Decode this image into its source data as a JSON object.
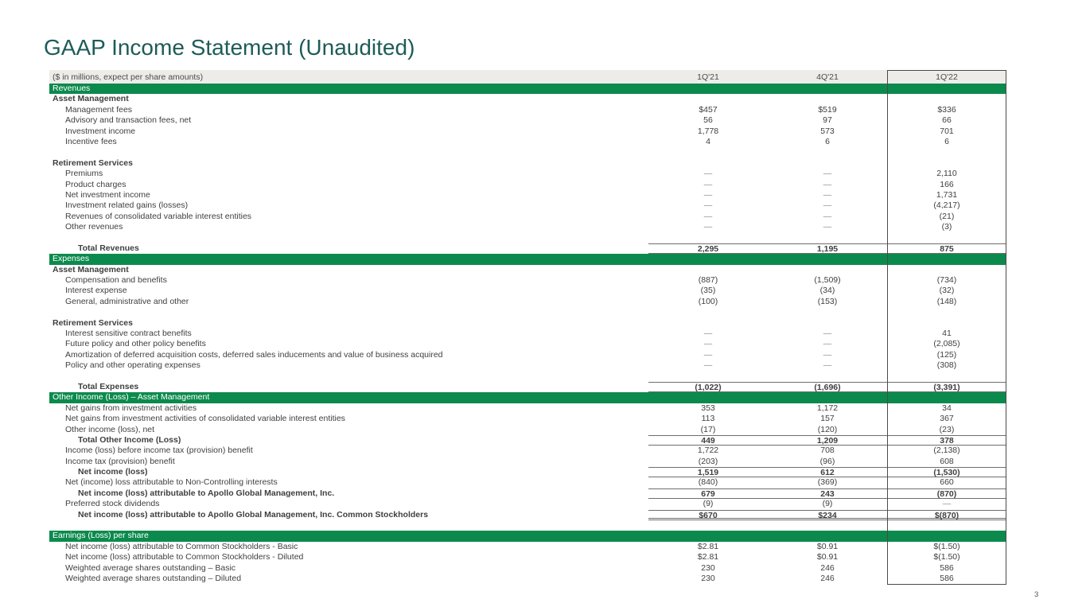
{
  "page": {
    "title": "GAAP Income Statement (Unaudited)",
    "page_number": "3"
  },
  "colors": {
    "brand_green": "#0c8a4d",
    "title_teal": "#1d5c58",
    "header_gray": "#edece9"
  },
  "table": {
    "header": {
      "label": "($ in millions, expect per share amounts)",
      "columns": [
        "1Q'21",
        "4Q'21",
        "1Q'22"
      ]
    },
    "highlighted_column": "1Q'22",
    "rows": [
      {
        "type": "band",
        "label": "Revenues"
      },
      {
        "type": "section",
        "label": "Asset Management"
      },
      {
        "type": "item",
        "label": "Management fees",
        "values": [
          "$457",
          "$519",
          "$336"
        ]
      },
      {
        "type": "item",
        "label": "Advisory and transaction fees, net",
        "values": [
          "56",
          "97",
          "66"
        ]
      },
      {
        "type": "item",
        "label": "Investment income",
        "values": [
          "1,778",
          "573",
          "701"
        ]
      },
      {
        "type": "item",
        "label": "Incentive fees",
        "values": [
          "4",
          "6",
          "6"
        ]
      },
      {
        "type": "blank",
        "label": ""
      },
      {
        "type": "section",
        "label": "Retirement Services"
      },
      {
        "type": "item",
        "label": "Premiums",
        "values": [
          "—",
          "—",
          "2,110"
        ]
      },
      {
        "type": "item",
        "label": "Product charges",
        "values": [
          "—",
          "—",
          "166"
        ]
      },
      {
        "type": "item",
        "label": "Net investment income",
        "values": [
          "—",
          "—",
          "1,731"
        ]
      },
      {
        "type": "item",
        "label": "Investment related gains (losses)",
        "values": [
          "—",
          "—",
          "(4,217)"
        ]
      },
      {
        "type": "item",
        "label": "Revenues of consolidated variable interest entities",
        "values": [
          "—",
          "—",
          "(21)"
        ]
      },
      {
        "type": "item",
        "label": "Other revenues",
        "values": [
          "—",
          "—",
          "(3)"
        ]
      },
      {
        "type": "blank",
        "label": ""
      },
      {
        "type": "total",
        "label": "Total Revenues",
        "values": [
          "2,295",
          "1,195",
          "875"
        ],
        "rule": "tb"
      },
      {
        "type": "band",
        "label": "Expenses"
      },
      {
        "type": "section",
        "label": "Asset Management"
      },
      {
        "type": "item",
        "label": "Compensation and benefits",
        "values": [
          "(887)",
          "(1,509)",
          "(734)"
        ]
      },
      {
        "type": "item",
        "label": "Interest expense",
        "values": [
          "(35)",
          "(34)",
          "(32)"
        ]
      },
      {
        "type": "item",
        "label": "General, administrative and other",
        "values": [
          "(100)",
          "(153)",
          "(148)"
        ]
      },
      {
        "type": "blank",
        "label": ""
      },
      {
        "type": "section",
        "label": "Retirement Services"
      },
      {
        "type": "item",
        "label": "Interest sensitive contract benefits",
        "values": [
          "—",
          "—",
          "41"
        ]
      },
      {
        "type": "item",
        "label": "Future policy and other policy benefits",
        "values": [
          "—",
          "—",
          "(2,085)"
        ]
      },
      {
        "type": "item",
        "label": "Amortization of deferred acquisition costs, deferred sales inducements and value of business acquired",
        "values": [
          "—",
          "—",
          "(125)"
        ]
      },
      {
        "type": "item",
        "label": "Policy and other operating expenses",
        "values": [
          "—",
          "—",
          "(308)"
        ]
      },
      {
        "type": "blank",
        "label": ""
      },
      {
        "type": "total",
        "label": "Total Expenses",
        "values": [
          "(1,022)",
          "(1,696)",
          "(3,391)"
        ],
        "rule": "tb"
      },
      {
        "type": "band",
        "label": "Other Income (Loss) – Asset Management"
      },
      {
        "type": "item",
        "label": "Net gains from investment activities",
        "values": [
          "353",
          "1,172",
          "34"
        ]
      },
      {
        "type": "item",
        "label": "Net gains from investment activities of consolidated variable interest entities",
        "values": [
          "113",
          "157",
          "367"
        ]
      },
      {
        "type": "item",
        "label": "Other income (loss), net",
        "values": [
          "(17)",
          "(120)",
          "(23)"
        ]
      },
      {
        "type": "total",
        "label": "Total Other Income (Loss)",
        "values": [
          "449",
          "1,209",
          "378"
        ],
        "rule": "tb"
      },
      {
        "type": "item",
        "label": "Income (loss) before income tax (provision) benefit",
        "values": [
          "1,722",
          "708",
          "(2,138)"
        ]
      },
      {
        "type": "item",
        "label": "Income tax (provision) benefit",
        "values": [
          "(203)",
          "(96)",
          "608"
        ]
      },
      {
        "type": "total",
        "label": "Net income (loss)",
        "values": [
          "1,519",
          "612",
          "(1,530)"
        ],
        "rule": "tb"
      },
      {
        "type": "item",
        "label": "Net (income) loss attributable to Non-Controlling interests",
        "values": [
          "(840)",
          "(369)",
          "660"
        ]
      },
      {
        "type": "total",
        "label": "Net income (loss) attributable to Apollo Global Management, Inc.",
        "values": [
          "679",
          "243",
          "(870)"
        ],
        "rule": "tb"
      },
      {
        "type": "item",
        "label": "Preferred stock dividends",
        "values": [
          "(9)",
          "(9)",
          "—"
        ]
      },
      {
        "type": "total",
        "label": "Net income (loss) attributable to Apollo Global Management, Inc. Common Stockholders",
        "values": [
          "$670",
          "$234",
          "$(870)"
        ],
        "rule": "tdb"
      },
      {
        "type": "blank",
        "label": ""
      },
      {
        "type": "band",
        "label": "Earnings (Loss) per share"
      },
      {
        "type": "item",
        "label": "Net income (loss) attributable to Common Stockholders - Basic",
        "values": [
          "$2.81",
          "$0.91",
          "$(1.50)"
        ]
      },
      {
        "type": "item",
        "label": "Net income (loss) attributable to Common Stockholders - Diluted",
        "values": [
          "$2.81",
          "$0.91",
          "$(1.50)"
        ]
      },
      {
        "type": "item",
        "label": "Weighted average shares outstanding – Basic",
        "values": [
          "230",
          "246",
          "586"
        ]
      },
      {
        "type": "item",
        "label": "Weighted average shares outstanding – Diluted",
        "values": [
          "230",
          "246",
          "586"
        ]
      }
    ]
  }
}
